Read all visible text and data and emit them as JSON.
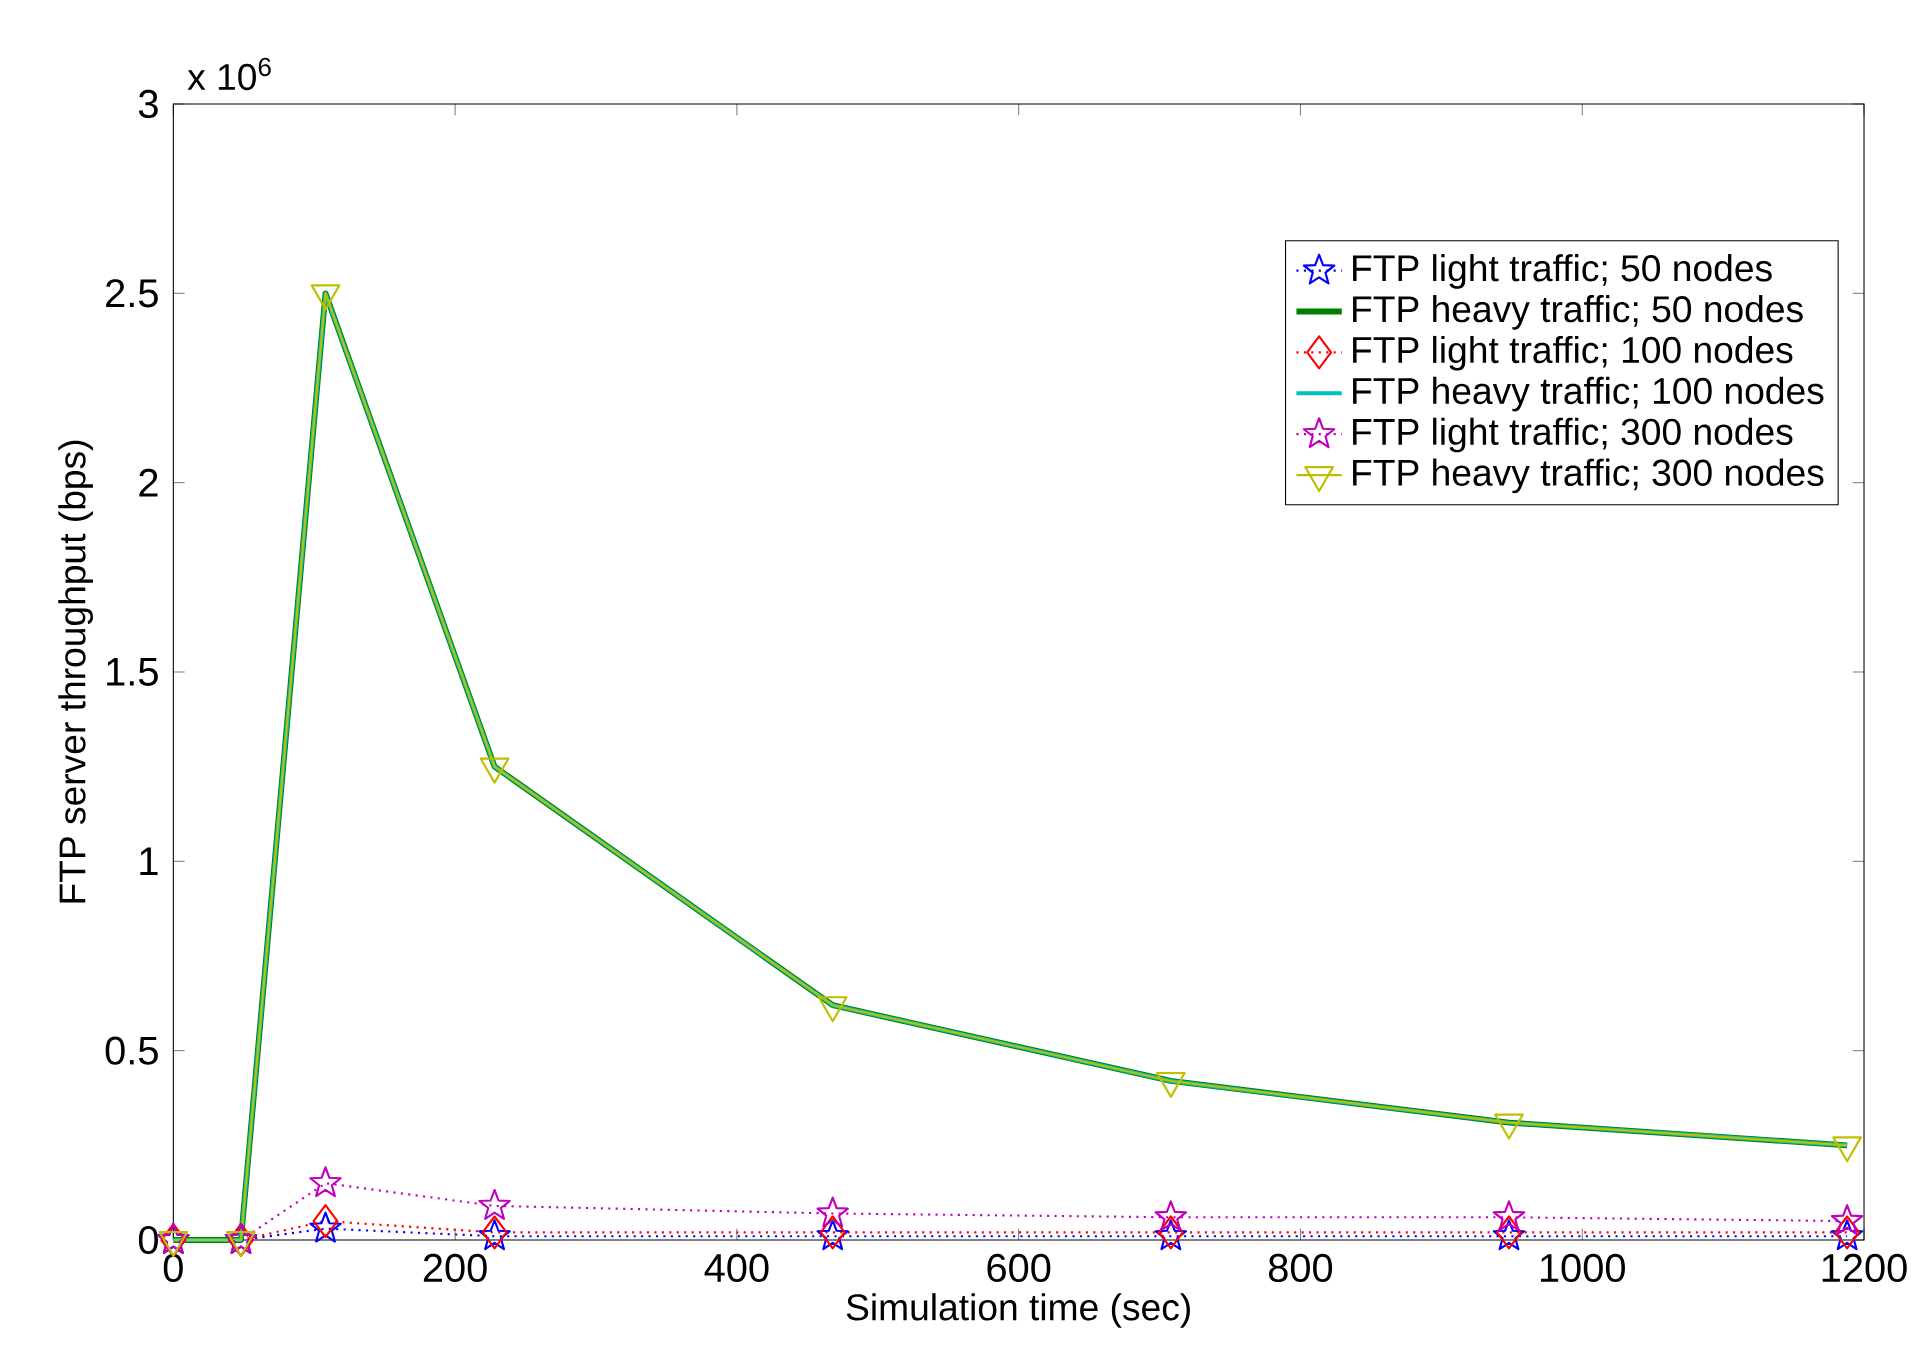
{
  "chart_data": {
    "type": "line",
    "xlabel": "Simulation time (sec)",
    "ylabel": "FTP server throughput (bps)",
    "annotations": [
      "x 10$^{6}$"
    ],
    "x": [
      0,
      48,
      108,
      228,
      468,
      708,
      948,
      1188
    ],
    "xlim": [
      0,
      1200
    ],
    "xticks": [
      0,
      200,
      400,
      600,
      800,
      1000,
      1200
    ],
    "ylim": [
      0,
      3
    ],
    "yticks": [
      0,
      0.5,
      1,
      1.5,
      2,
      2.5,
      3
    ],
    "grid": false,
    "legend": "top right",
    "series": [
      {
        "name": "FTP light traffic; 50 nodes",
        "color": "#0000ff",
        "marker": "star",
        "line_style": "dotted",
        "values": [
          0,
          0,
          0.03,
          0.01,
          0.01,
          0.01,
          0.01,
          0.01
        ]
      },
      {
        "name": "FTP heavy traffic; 50 nodes",
        "color": "#008000",
        "marker": "none",
        "line_style": "solid",
        "values": [
          0,
          0,
          2.5,
          1.25,
          0.62,
          0.42,
          0.31,
          0.25
        ]
      },
      {
        "name": "FTP light traffic; 100 nodes",
        "color": "#ff0000",
        "marker": "diamond",
        "line_style": "dotted",
        "values": [
          0,
          0,
          0.05,
          0.02,
          0.02,
          0.02,
          0.02,
          0.02
        ]
      },
      {
        "name": "FTP heavy traffic; 100 nodes",
        "color": "#00bfbf",
        "marker": "none",
        "line_style": "solid",
        "values": [
          0,
          0,
          2.5,
          1.25,
          0.62,
          0.42,
          0.31,
          0.25
        ]
      },
      {
        "name": "FTP light traffic; 300 nodes",
        "color": "#bf00bf",
        "marker": "star",
        "line_style": "dotted",
        "values": [
          0,
          0,
          0.15,
          0.09,
          0.07,
          0.06,
          0.06,
          0.05
        ]
      },
      {
        "name": "FTP heavy traffic; 300 nodes",
        "color": "#bfbf00",
        "marker": "triangle",
        "line_style": "solid",
        "values": [
          0,
          0,
          2.5,
          1.25,
          0.62,
          0.42,
          0.31,
          0.25
        ]
      }
    ]
  }
}
